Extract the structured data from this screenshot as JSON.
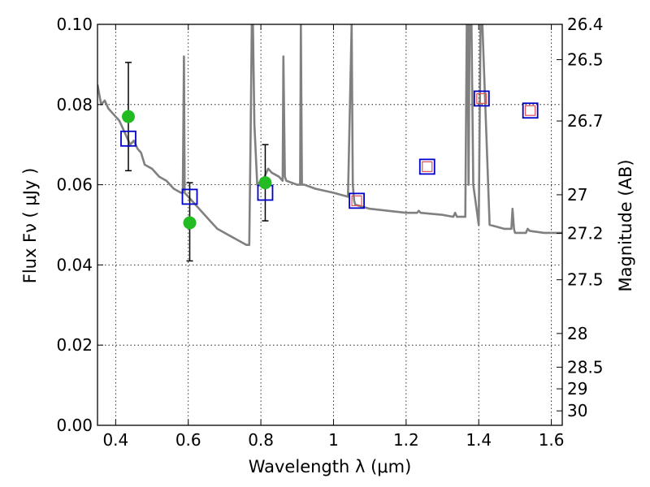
{
  "chart_data": {
    "type": "line",
    "xlabel": "Wavelength  λ (μm)",
    "ylabel": "Flux  Fν  ( μJy )",
    "y2label": "Magnitude (AB)",
    "xlim": [
      0.35,
      1.63
    ],
    "ylim": [
      0.0,
      0.1
    ],
    "grid": true,
    "x_ticks": [
      0.4,
      0.6,
      0.8,
      1.0,
      1.2,
      1.4,
      1.6
    ],
    "x_tick_labels": [
      "0.4",
      "0.6",
      "0.8",
      "1",
      "1.2",
      "1.4",
      "1.6"
    ],
    "y_ticks": [
      0.0,
      0.02,
      0.04,
      0.06,
      0.08,
      0.1
    ],
    "y_tick_labels": [
      "0.00",
      "0.02",
      "0.04",
      "0.06",
      "0.08",
      "0.10"
    ],
    "y2_ticks": [
      {
        "label": "26.4",
        "flux": 0.1
      },
      {
        "label": "26.5",
        "flux": 0.0912
      },
      {
        "label": "26.7",
        "flux": 0.0759
      },
      {
        "label": "27",
        "flux": 0.0575
      },
      {
        "label": "27.2",
        "flux": 0.0479
      },
      {
        "label": "27.5",
        "flux": 0.0363
      },
      {
        "label": "28",
        "flux": 0.0229
      },
      {
        "label": "28.5",
        "flux": 0.0145
      },
      {
        "label": "29",
        "flux": 0.0091
      },
      {
        "label": "30",
        "flux": 0.0036
      }
    ],
    "colors": {
      "spectrum": "#808080",
      "model_box": "#0000cc",
      "inner_box": "#e05050",
      "observed": "#22bb22",
      "errorbar": "#000000",
      "grid": "#000000"
    },
    "series": [
      {
        "type": "line",
        "x": [
          0.35,
          0.36,
          0.37,
          0.38,
          0.39,
          0.4,
          0.41,
          0.42,
          0.43,
          0.44,
          0.45,
          0.46,
          0.47,
          0.48,
          0.5,
          0.52,
          0.54,
          0.56,
          0.58,
          0.585,
          0.588,
          0.59,
          0.6,
          0.62,
          0.64,
          0.66,
          0.68,
          0.7,
          0.72,
          0.74,
          0.76,
          0.768,
          0.772,
          0.775,
          0.778,
          0.782,
          0.79,
          0.8,
          0.81,
          0.82,
          0.83,
          0.85,
          0.86,
          0.862,
          0.866,
          0.87,
          0.9,
          0.908,
          0.91,
          0.913,
          0.92,
          0.95,
          1.0,
          1.04,
          1.05,
          1.053,
          1.057,
          1.06,
          1.1,
          1.15,
          1.2,
          1.23,
          1.235,
          1.24,
          1.3,
          1.33,
          1.335,
          1.34,
          1.363,
          1.367,
          1.37,
          1.372,
          1.375,
          1.38,
          1.385,
          1.4,
          1.405,
          1.41,
          1.43,
          1.47,
          1.49,
          1.493,
          1.497,
          1.5,
          1.53,
          1.535,
          1.54,
          1.58,
          1.63
        ],
        "y": [
          0.085,
          0.08,
          0.081,
          0.079,
          0.078,
          0.077,
          0.076,
          0.074,
          0.072,
          0.07,
          0.071,
          0.069,
          0.068,
          0.065,
          0.064,
          0.062,
          0.061,
          0.059,
          0.058,
          0.058,
          0.092,
          0.058,
          0.057,
          0.055,
          0.053,
          0.051,
          0.049,
          0.048,
          0.047,
          0.046,
          0.045,
          0.045,
          0.075,
          0.1,
          0.1,
          0.075,
          0.06,
          0.061,
          0.062,
          0.064,
          0.063,
          0.062,
          0.061,
          0.092,
          0.062,
          0.061,
          0.06,
          0.06,
          0.1,
          0.06,
          0.06,
          0.059,
          0.058,
          0.057,
          0.1,
          0.06,
          0.056,
          0.055,
          0.054,
          0.0535,
          0.053,
          0.053,
          0.0535,
          0.053,
          0.0525,
          0.052,
          0.053,
          0.052,
          0.052,
          0.1,
          0.1,
          0.06,
          0.1,
          0.1,
          0.06,
          0.05,
          0.1,
          0.1,
          0.05,
          0.049,
          0.049,
          0.054,
          0.049,
          0.048,
          0.048,
          0.049,
          0.0485,
          0.048,
          0.048
        ]
      },
      {
        "type": "scatter",
        "marker": "open-square",
        "x": [
          0.435,
          0.604,
          0.812,
          1.064,
          1.258,
          1.408,
          1.542
        ],
        "y": [
          0.0715,
          0.057,
          0.058,
          0.056,
          0.0645,
          0.0815,
          0.0785
        ]
      },
      {
        "type": "scatter",
        "marker": "open-square-small",
        "x": [
          1.064,
          1.258,
          1.408,
          1.542
        ],
        "y": [
          0.056,
          0.0645,
          0.0815,
          0.0785
        ]
      },
      {
        "type": "scatter",
        "marker": "filled-circle",
        "x": [
          0.435,
          0.604,
          0.812
        ],
        "y": [
          0.077,
          0.0505,
          0.0605
        ],
        "err": [
          [
            0.0635,
            0.0905
          ],
          [
            0.041,
            0.0605
          ],
          [
            0.051,
            0.07
          ]
        ]
      }
    ]
  }
}
